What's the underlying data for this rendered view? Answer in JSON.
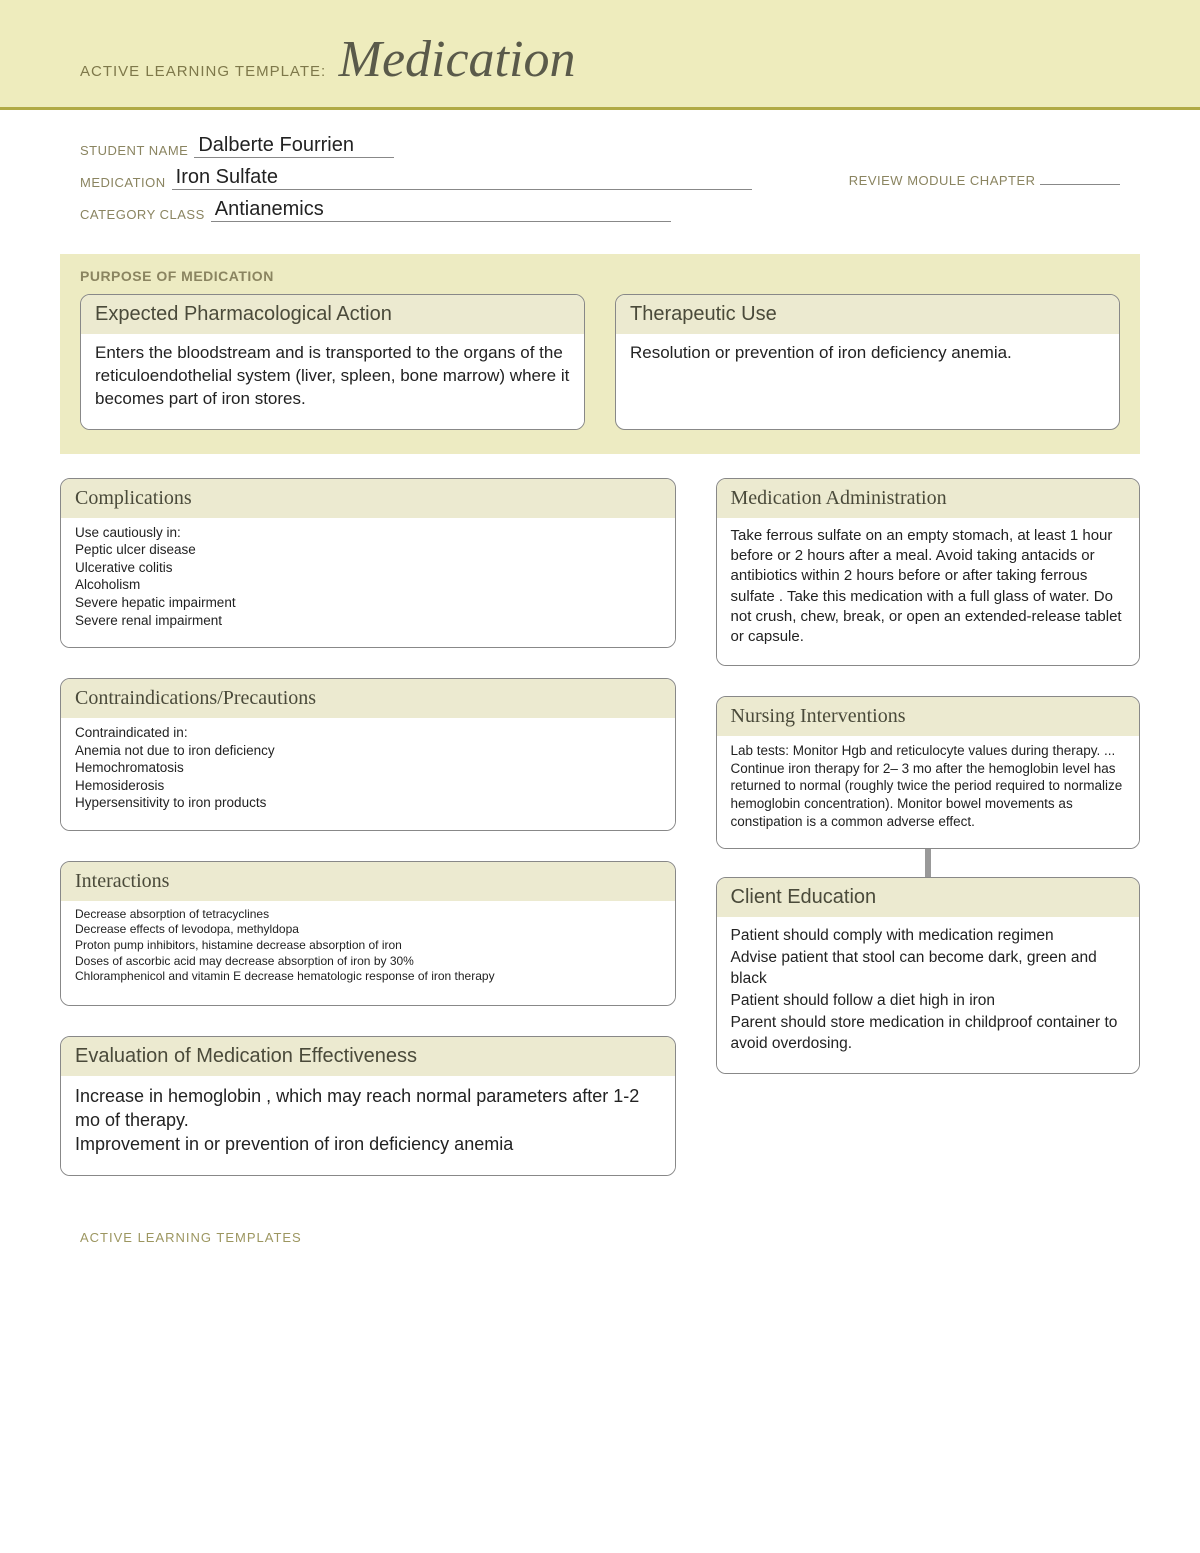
{
  "header": {
    "prefix": "ACTIVE LEARNING TEMPLATE:",
    "title": "Medication"
  },
  "meta": {
    "student_label": "STUDENT NAME",
    "student_value": "Dalberte Fourrien",
    "medication_label": "MEDICATION",
    "medication_value": "Iron Sulfate",
    "review_label": "REVIEW MODULE CHAPTER",
    "review_value": "",
    "category_label": "CATEGORY CLASS",
    "category_value": "Antianemics"
  },
  "purpose": {
    "section_title": "PURPOSE OF MEDICATION",
    "pharm": {
      "title": "Expected Pharmacological Action",
      "body": "Enters the bloodstream and is transported to the organs of the reticuloendothelial system (liver, spleen, bone marrow) where it becomes part of iron stores."
    },
    "therapeutic": {
      "title": "Therapeutic Use",
      "body": "Resolution or prevention of iron deficiency anemia."
    }
  },
  "boxes": {
    "complications": {
      "title": "Complications",
      "body": "Use cautiously in:\nPeptic ulcer disease\nUlcerative colitis\nAlcoholism\nSevere hepatic impairment\nSevere renal impairment"
    },
    "contraindications": {
      "title": "Contraindications/Precautions",
      "body": "Contraindicated in:\nAnemia not due to iron deficiency\nHemochromatosis\nHemosiderosis\nHypersensitivity to iron products"
    },
    "interactions": {
      "title": "Interactions",
      "body": "Decrease absorption of tetracyclines\nDecrease effects of levodopa, methyldopa\nProton pump inhibitors, histamine decrease absorption of iron\nDoses of ascorbic acid may decrease absorption of iron by 30%\nChloramphenicol and vitamin E decrease hematologic response of iron therapy"
    },
    "evaluation": {
      "title": "Evaluation of Medication Effectiveness",
      "body": "Increase in hemoglobin , which may reach normal parameters after 1-2 mo of therapy.\nImprovement in or prevention of iron deficiency anemia"
    },
    "administration": {
      "title": "Medication Administration",
      "body": "Take ferrous sulfate on an empty stomach, at least 1 hour before or 2 hours after a meal. Avoid taking antacids or antibiotics within 2 hours before or after taking ferrous sulfate . Take this medication with a full glass of water. Do not crush, chew, break, or open an extended-release tablet or capsule."
    },
    "nursing": {
      "title": "Nursing Interventions",
      "body": "Lab tests: Monitor Hgb and reticulocyte values during therapy. ...\nContinue iron therapy for 2– 3 mo after the hemoglobin level has returned to normal (roughly twice the period required to normalize hemoglobin concentration). Monitor bowel movements as constipation is a common adverse effect."
    },
    "client": {
      "title": "Client Education",
      "body": "Patient should comply with medication regimen\nAdvise patient that stool can become dark, green and black\nPatient should follow a diet high in iron\nParent should store medication in childproof container to avoid overdosing."
    }
  },
  "footer": "ACTIVE LEARNING TEMPLATES"
}
